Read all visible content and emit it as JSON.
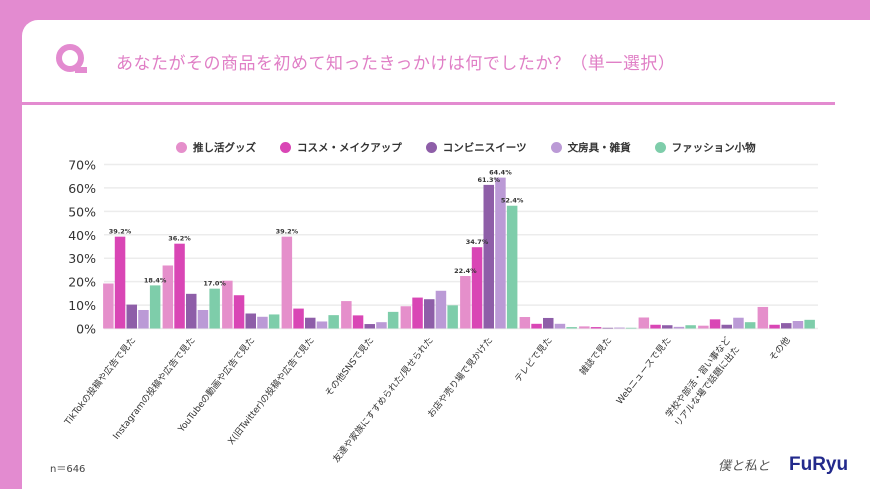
{
  "header": {
    "title": "あなたがその商品を初めて知ったきっかけは何でしたか？（単一選択）",
    "q_label": "Q"
  },
  "footer": {
    "sample_size": "n＝646",
    "signature_logo": "僕と私と",
    "brand_logo": "FuRyu"
  },
  "colors": {
    "frame": "#e38bd0",
    "series": [
      "#e58fcb",
      "#d946b5",
      "#8e5ea8",
      "#bb9ad6",
      "#7ecdaa"
    ]
  },
  "chart_data": {
    "type": "bar",
    "title": "",
    "xlabel": "",
    "ylabel": "",
    "ylim": [
      0,
      70
    ],
    "yticks": [
      "0%",
      "10%",
      "20%",
      "30%",
      "40%",
      "50%",
      "60%",
      "70%"
    ],
    "grid": true,
    "legend_position": "top",
    "categories": [
      "TikTokの投稿や広告で見た",
      "Instagramの投稿や広告で見た",
      "YouTubeの動画や広告で見た",
      "X(旧Twitter)の投稿や広告で見た",
      "その他SNSで見た",
      "友達や家族にすすめられた/見せられた",
      "お店や売り場で見かけた",
      "テレビで見た",
      "雑誌で見た",
      "Webニュースで見た",
      "学校や部活・習い事など\nリアルな場で話題に出た",
      "その他"
    ],
    "series": [
      {
        "name": "推し活グッズ",
        "values": [
          19.2,
          26.9,
          20.4,
          39.2,
          11.7,
          9.5,
          22.4,
          4.9,
          0.9,
          4.7,
          1.2,
          9.2
        ]
      },
      {
        "name": "コスメ・メイクアップ",
        "values": [
          39.2,
          36.2,
          14.2,
          8.5,
          5.6,
          13.2,
          34.7,
          2.0,
          0.6,
          1.6,
          3.9,
          1.6
        ]
      },
      {
        "name": "コンビニスイーツ",
        "values": [
          10.2,
          14.8,
          6.4,
          4.6,
          1.9,
          12.5,
          61.3,
          4.5,
          0.3,
          1.4,
          1.6,
          2.3
        ]
      },
      {
        "name": "文房具・雑貨",
        "values": [
          7.9,
          7.9,
          5.0,
          3.0,
          2.7,
          16.1,
          64.4,
          2.0,
          0.4,
          0.7,
          4.6,
          3.2
        ]
      },
      {
        "name": "ファッション小物",
        "values": [
          18.4,
          17.0,
          6.0,
          5.7,
          7.1,
          9.9,
          52.4,
          0.6,
          0.3,
          1.4,
          2.7,
          3.7
        ]
      }
    ],
    "data_labels": [
      {
        "category": 0,
        "series": 1,
        "text": "39.2%"
      },
      {
        "category": 0,
        "series": 4,
        "text": "18.4%"
      },
      {
        "category": 1,
        "series": 1,
        "text": "36.2%"
      },
      {
        "category": 1,
        "series": 4,
        "text": "17.0%"
      },
      {
        "category": 3,
        "series": 0,
        "text": "39.2%"
      },
      {
        "category": 6,
        "series": 0,
        "text": "22.4%"
      },
      {
        "category": 6,
        "series": 1,
        "text": "34.7%"
      },
      {
        "category": 6,
        "series": 2,
        "text": "61.3%"
      },
      {
        "category": 6,
        "series": 3,
        "text": "64.4%"
      },
      {
        "category": 6,
        "series": 4,
        "text": "52.4%"
      }
    ]
  }
}
